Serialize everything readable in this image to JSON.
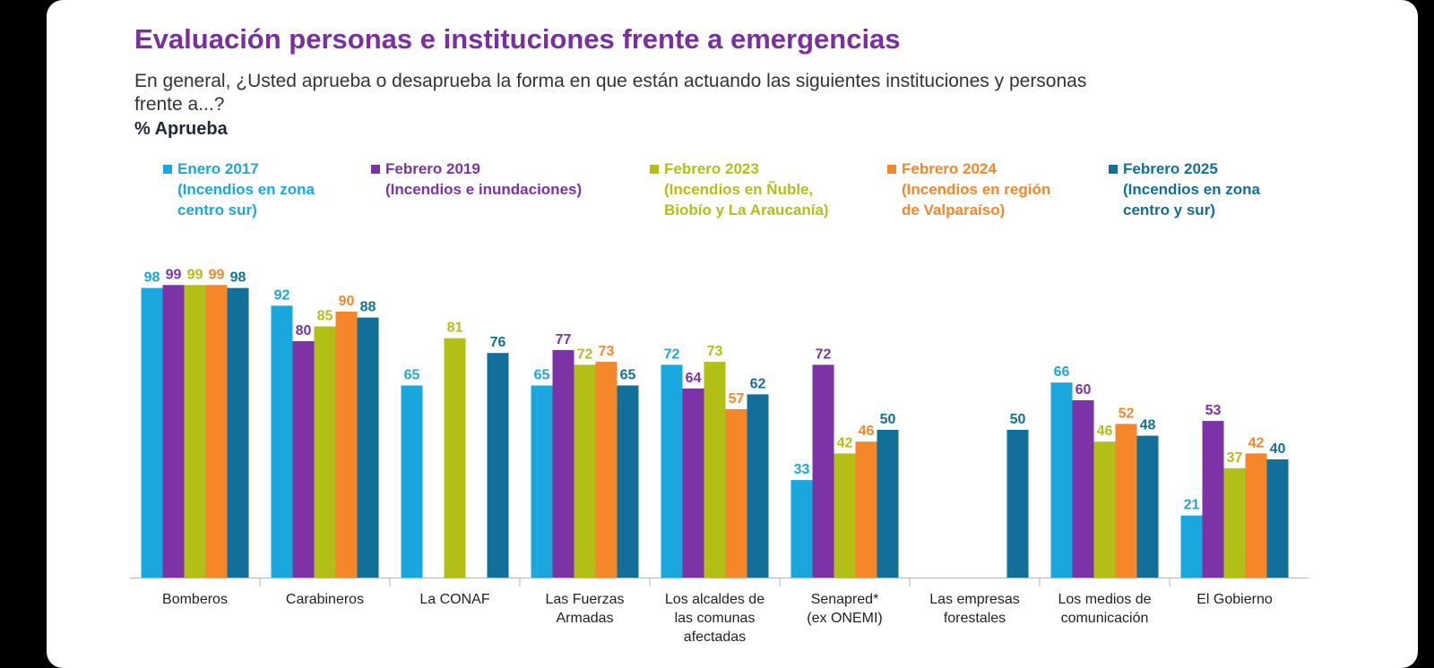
{
  "chart_data": {
    "type": "bar",
    "title": "Evaluación personas e instituciones frente a emergencias",
    "subtitle": "En general, ¿Usted aprueba o desaprueba la forma en que están actuando las siguientes instituciones y personas frente a...?",
    "ylabel": "% Aprueba",
    "ylim": [
      0,
      100
    ],
    "categories": [
      [
        "Bomberos"
      ],
      [
        "Carabineros"
      ],
      [
        "La CONAF"
      ],
      [
        "Las Fuerzas",
        "Armadas"
      ],
      [
        "Los alcaldes de",
        "las comunas",
        "afectadas"
      ],
      [
        "Senapred*",
        "(ex ONEMI)"
      ],
      [
        "Las empresas",
        "forestales"
      ],
      [
        "Los medios de",
        "comunicación"
      ],
      [
        "El Gobierno"
      ]
    ],
    "series": [
      {
        "name": "Enero 2017",
        "detail": [
          "(Incendios en zona",
          "centro sur)"
        ],
        "color": "#1aa7dd",
        "values": [
          98,
          92,
          65,
          65,
          72,
          33,
          null,
          66,
          21
        ]
      },
      {
        "name": "Febrero 2019",
        "detail": [
          "(Incendios e inundaciones)"
        ],
        "color": "#7b33a6",
        "values": [
          99,
          80,
          null,
          77,
          64,
          72,
          null,
          60,
          53
        ]
      },
      {
        "name": "Febrero 2023",
        "detail": [
          "(Incendios en Ñuble,",
          "Biobío y La Araucanía)"
        ],
        "color": "#b1bf16",
        "values": [
          99,
          85,
          81,
          72,
          73,
          42,
          null,
          46,
          37
        ]
      },
      {
        "name": "Febrero 2024",
        "detail": [
          "(Incendios en región",
          "de Valparaíso)"
        ],
        "color": "#f5862a",
        "values": [
          99,
          90,
          null,
          73,
          57,
          46,
          null,
          52,
          42
        ]
      },
      {
        "name": "Febrero 2025",
        "detail": [
          "(Incendios en zona",
          "centro y sur)"
        ],
        "color": "#126f9a",
        "values": [
          98,
          88,
          76,
          65,
          62,
          50,
          50,
          48,
          40
        ]
      }
    ],
    "grid": false,
    "legend": "top"
  }
}
